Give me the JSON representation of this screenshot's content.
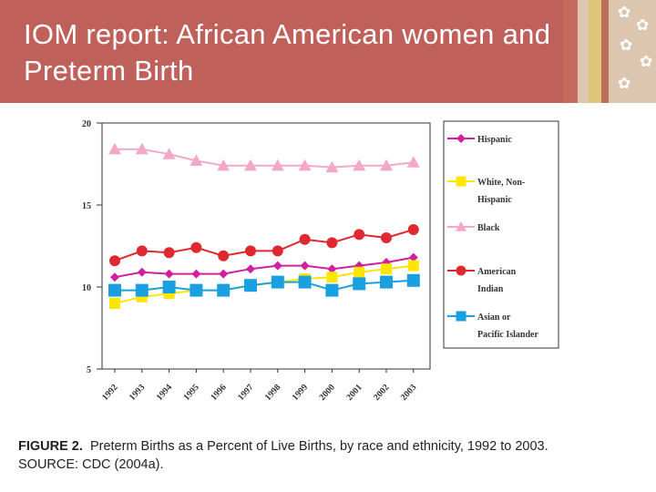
{
  "slide": {
    "title": "IOM report: African American women and Preterm Birth"
  },
  "caption": {
    "figure_label": "FIGURE 2.",
    "text": "Preterm Births as a Percent of Live Births, by race and ethnicity, 1992 to 2003.",
    "source": "SOURCE: CDC (2004a)."
  },
  "colors": {
    "banner": "#c0605a",
    "hispanic": "#d020a0",
    "white": "#ffe600",
    "black": "#f4a8c8",
    "american_indian": "#e02830",
    "asian": "#1aa0e0"
  },
  "chart_data": {
    "type": "line",
    "title": "Preterm Births as a Percent of Live Births, by race and ethnicity, 1992 to 2003",
    "xlabel": "",
    "ylabel": "",
    "ylim": [
      5,
      20
    ],
    "yticks": [
      20,
      15,
      10,
      5
    ],
    "x": [
      "1992",
      "1993",
      "1994",
      "1995",
      "1996",
      "1997",
      "1998",
      "1999",
      "2000",
      "2001",
      "2002",
      "2003"
    ],
    "legend_position": "right",
    "series": [
      {
        "name": "Hispanic",
        "marker": "diamond",
        "color": "#d020a0",
        "values": [
          10.6,
          10.9,
          10.8,
          10.8,
          10.8,
          11.1,
          11.3,
          11.3,
          11.1,
          11.3,
          11.5,
          11.8
        ]
      },
      {
        "name": "White, Non-Hispanic",
        "marker": "square",
        "color": "#ffe600",
        "values": [
          9.0,
          9.4,
          9.6,
          9.8,
          9.8,
          10.1,
          10.3,
          10.5,
          10.6,
          10.9,
          11.1,
          11.3
        ]
      },
      {
        "name": "Black",
        "marker": "triangle",
        "color": "#f4a8c8",
        "values": [
          18.4,
          18.4,
          18.1,
          17.7,
          17.4,
          17.4,
          17.4,
          17.4,
          17.3,
          17.4,
          17.4,
          17.6
        ]
      },
      {
        "name": "American Indian",
        "marker": "circle",
        "color": "#e02830",
        "values": [
          11.6,
          12.2,
          12.1,
          12.4,
          11.9,
          12.2,
          12.2,
          12.9,
          12.7,
          13.2,
          13.0,
          13.5
        ]
      },
      {
        "name": "Asian or Pacific Islander",
        "marker": "square",
        "color": "#1aa0e0",
        "values": [
          9.8,
          9.8,
          10.0,
          9.8,
          9.8,
          10.1,
          10.3,
          10.3,
          9.8,
          10.2,
          10.3,
          10.4
        ]
      }
    ]
  }
}
